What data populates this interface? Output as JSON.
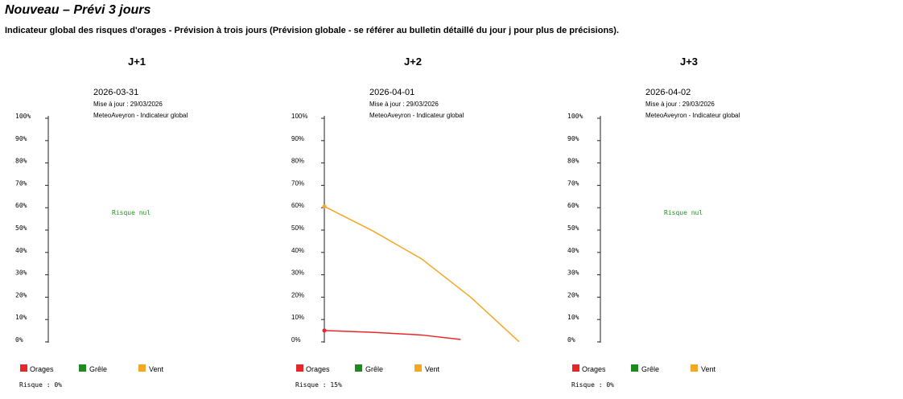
{
  "header": {
    "title": "Nouveau – Prévi 3 jours",
    "subtitle": "Indicateur global des risques d'orages - Prévision à trois jours (Prévision globale - se référer au bulletin détaillé du jour j pour plus de précisions)."
  },
  "colors": {
    "orages": "#e8262a",
    "grele": "#1f8a1f",
    "vent": "#f5a623",
    "risque_nul": "#2a8f2a"
  },
  "legend": {
    "orages": "Orages",
    "grele": "Grêle",
    "vent": "Vent"
  },
  "panels": [
    {
      "day": "J+1",
      "date": "2026-03-31",
      "updated": "Mise à jour : 29/03/2026",
      "source": "MeteoAveyron - Indicateur global",
      "risk_label": "Risque nul",
      "risk_total": "Risque : 0%",
      "ticks": [
        "0%",
        "10%",
        "20%",
        "30%",
        "40%",
        "50%",
        "60%",
        "70%",
        "80%",
        "90%",
        "100%"
      ]
    },
    {
      "day": "J+2",
      "date": "2026-04-01",
      "updated": "Mise à jour : 29/03/2026",
      "source": "MeteoAveyron - Indicateur global",
      "risk_label": "",
      "risk_total": "Risque : 15%",
      "ticks": [
        "0%",
        "10%",
        "20%",
        "30%",
        "40%",
        "50%",
        "60%",
        "70%",
        "80%",
        "90%",
        "100%"
      ]
    },
    {
      "day": "J+3",
      "date": "2026-04-02",
      "updated": "Mise à jour : 29/03/2026",
      "source": "MeteoAveyron - Indicateur global",
      "risk_label": "Risque nul",
      "risk_total": "Risque : 0%",
      "ticks": [
        "0%",
        "10%",
        "20%",
        "30%",
        "40%",
        "50%",
        "60%",
        "70%",
        "80%",
        "90%",
        "100%"
      ]
    }
  ],
  "chart_data": [
    {
      "type": "line",
      "title": "J+1",
      "ylim": [
        0,
        100
      ],
      "series": []
    },
    {
      "type": "line",
      "title": "J+2",
      "ylim": [
        0,
        100
      ],
      "xlim": [
        0,
        1
      ],
      "series": [
        {
          "name": "Orages",
          "color": "#e8262a",
          "x": [
            0,
            0.25,
            0.5,
            0.7
          ],
          "y": [
            4,
            3.2,
            2,
            0
          ]
        },
        {
          "name": "Vent",
          "color": "#f5a623",
          "x": [
            0,
            0.25,
            0.5,
            0.75,
            1.0
          ],
          "y": [
            59.5,
            48.5,
            36,
            19,
            -1
          ]
        }
      ]
    },
    {
      "type": "line",
      "title": "J+3",
      "ylim": [
        0,
        100
      ],
      "series": []
    }
  ]
}
